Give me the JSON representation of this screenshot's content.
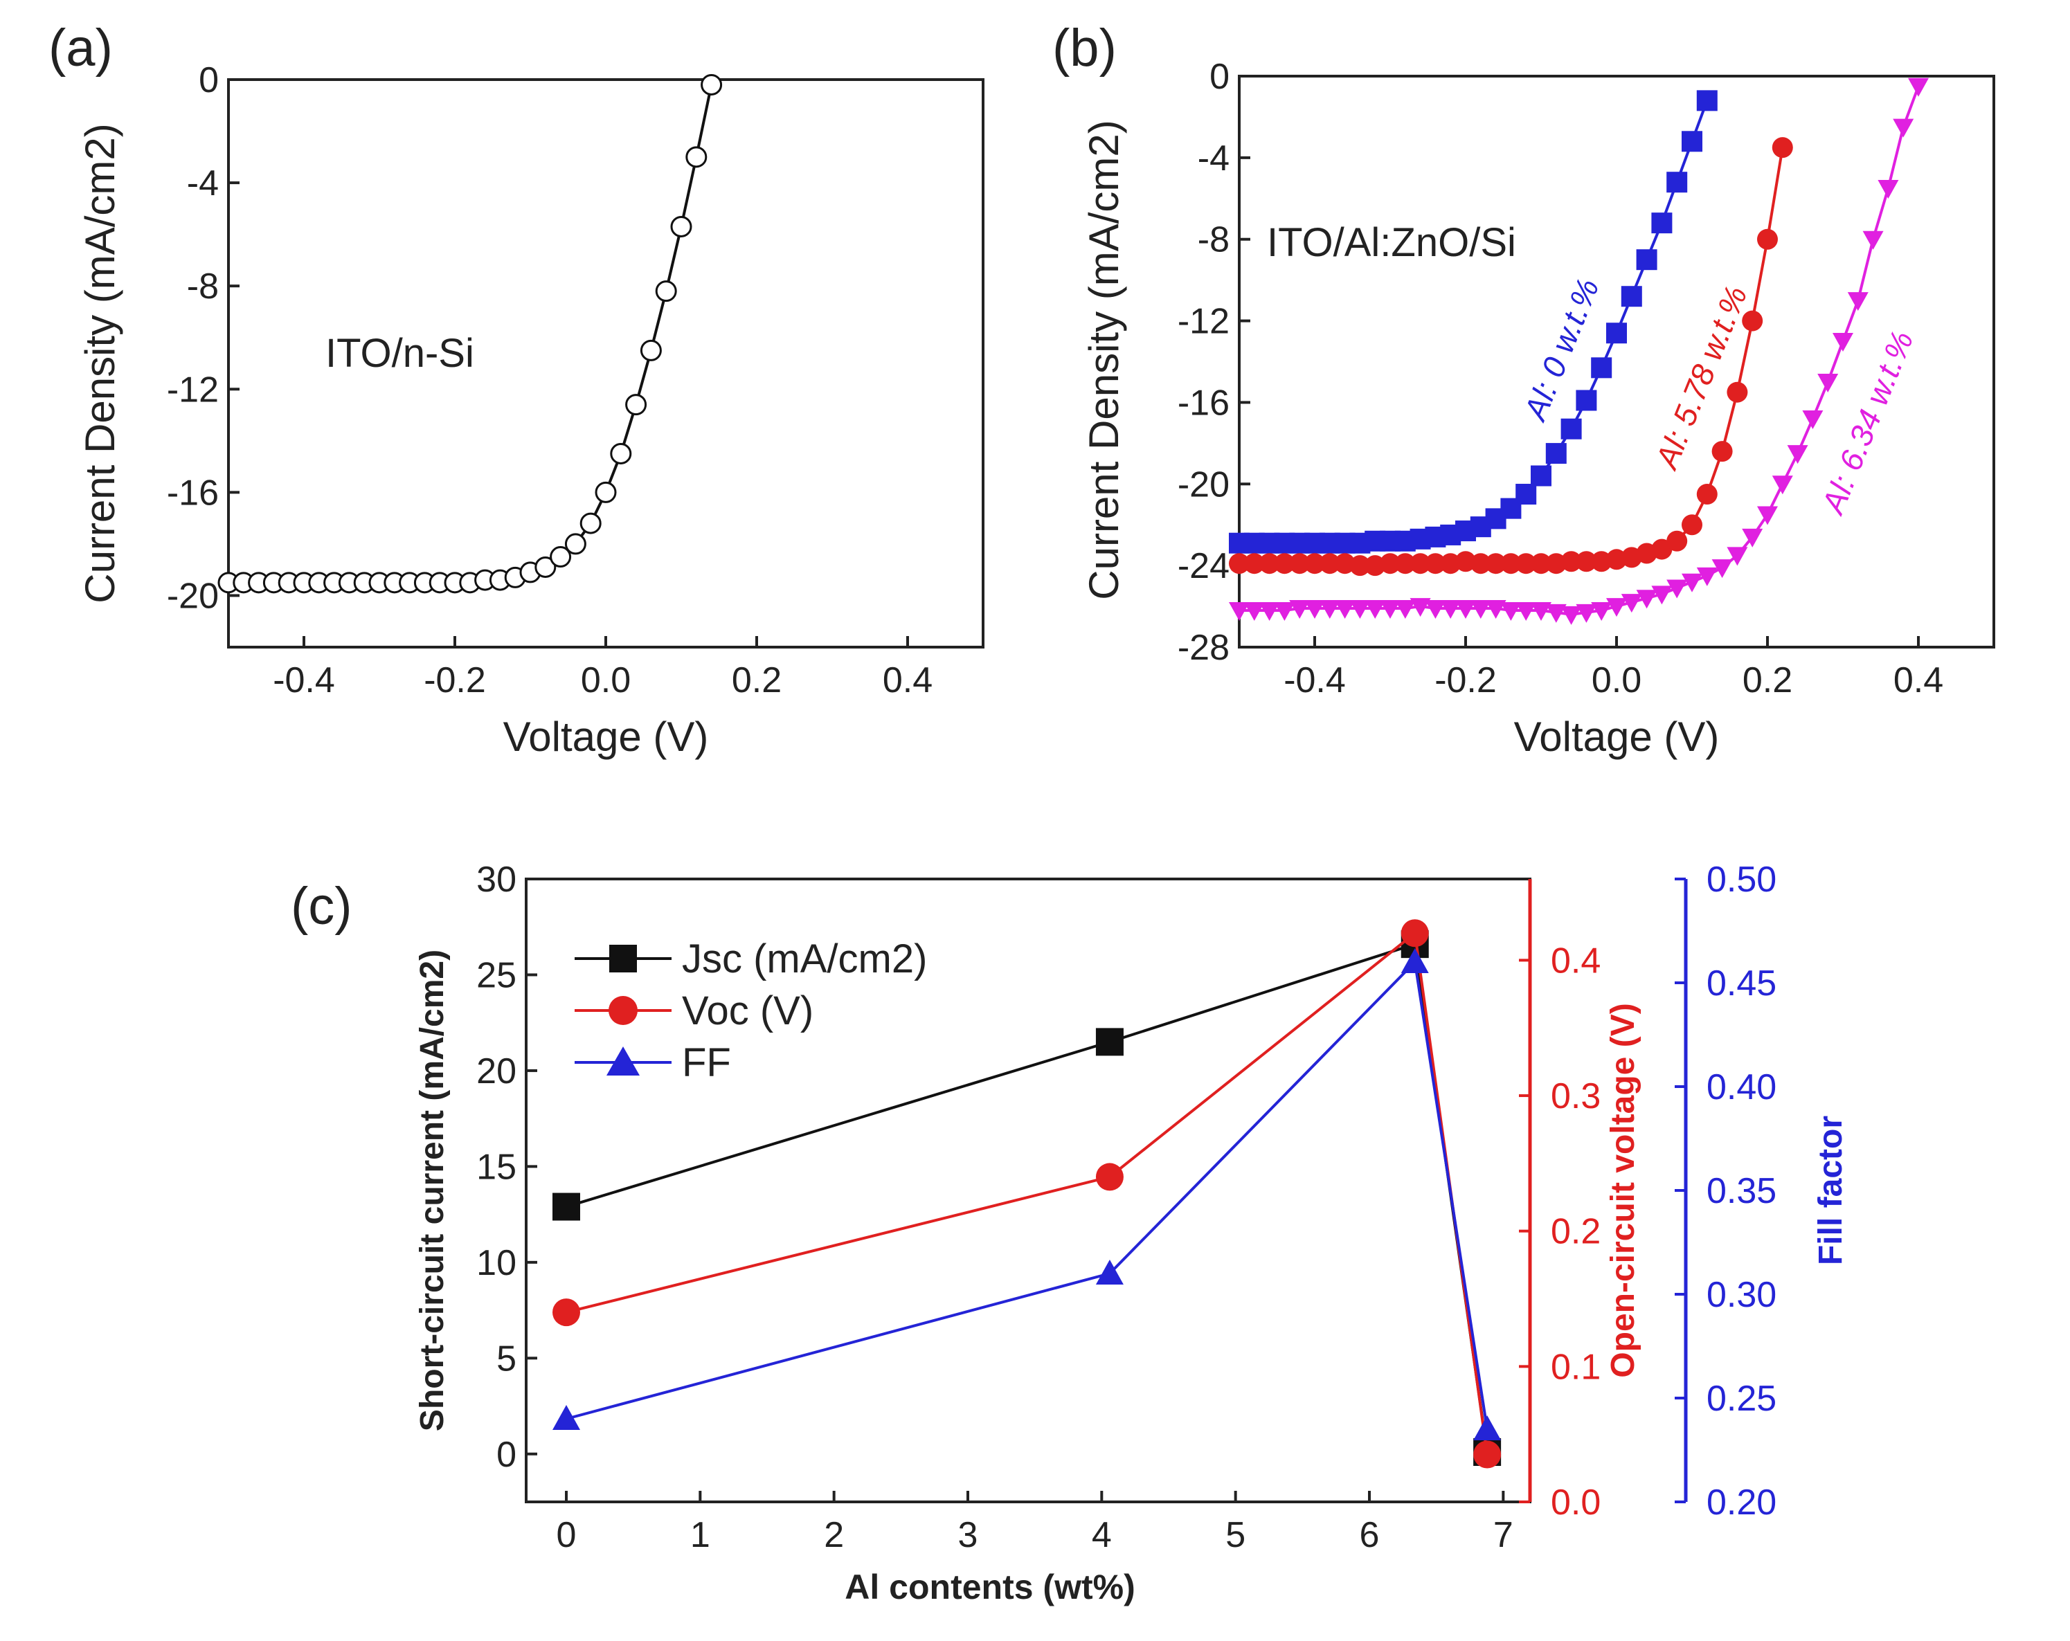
{
  "chart_data": [
    {
      "id": "a",
      "type": "line",
      "panel_label": "(a)",
      "annotation": "ITO/n-Si",
      "xlabel": "Voltage (V)",
      "ylabel": "Current Density (mA/cm2)",
      "xlim": [
        -0.5,
        0.5
      ],
      "ylim": [
        -22,
        0
      ],
      "xticks": [
        "-0.4",
        "-0.2",
        "0.0",
        "0.2",
        "0.4"
      ],
      "yticks": [
        "0",
        "-4",
        "-8",
        "-12",
        "-16",
        "-20"
      ],
      "series": [
        {
          "name": "ITO/n-Si",
          "color": "#111111",
          "marker": "open-circle",
          "x": [
            -0.5,
            -0.48,
            -0.46,
            -0.44,
            -0.42,
            -0.4,
            -0.38,
            -0.36,
            -0.34,
            -0.32,
            -0.3,
            -0.28,
            -0.26,
            -0.24,
            -0.22,
            -0.2,
            -0.18,
            -0.16,
            -0.14,
            -0.12,
            -0.1,
            -0.08,
            -0.06,
            -0.04,
            -0.02,
            0.0,
            0.02,
            0.04,
            0.06,
            0.08,
            0.1,
            0.12,
            0.14
          ],
          "y": [
            -19.5,
            -19.5,
            -19.5,
            -19.5,
            -19.5,
            -19.5,
            -19.5,
            -19.5,
            -19.5,
            -19.5,
            -19.5,
            -19.5,
            -19.5,
            -19.5,
            -19.5,
            -19.5,
            -19.5,
            -19.4,
            -19.4,
            -19.3,
            -19.1,
            -18.9,
            -18.5,
            -18.0,
            -17.2,
            -16.0,
            -14.5,
            -12.6,
            -10.5,
            -8.2,
            -5.7,
            -3.0,
            -0.2
          ]
        }
      ]
    },
    {
      "id": "b",
      "type": "line",
      "panel_label": "(b)",
      "annotation": "ITO/Al:ZnO/Si",
      "xlabel": "Voltage (V)",
      "ylabel": "Current Density (mA/cm2)",
      "xlim": [
        -0.5,
        0.5
      ],
      "ylim": [
        -28,
        0
      ],
      "xticks": [
        "-0.4",
        "-0.2",
        "0.0",
        "0.2",
        "0.4"
      ],
      "yticks": [
        "0",
        "-4",
        "-8",
        "-12",
        "-16",
        "-20",
        "-24",
        "-28"
      ],
      "series": [
        {
          "name": "Al: 0 w.t.%",
          "color": "#2424d6",
          "marker": "square",
          "x": [
            -0.5,
            -0.48,
            -0.46,
            -0.44,
            -0.42,
            -0.4,
            -0.38,
            -0.36,
            -0.34,
            -0.32,
            -0.3,
            -0.28,
            -0.26,
            -0.24,
            -0.22,
            -0.2,
            -0.18,
            -0.16,
            -0.14,
            -0.12,
            -0.1,
            -0.08,
            -0.06,
            -0.04,
            -0.02,
            0.0,
            0.02,
            0.04,
            0.06,
            0.08,
            0.1,
            0.12
          ],
          "y": [
            -22.9,
            -22.9,
            -22.9,
            -22.9,
            -22.9,
            -22.9,
            -22.9,
            -22.9,
            -22.9,
            -22.8,
            -22.8,
            -22.8,
            -22.7,
            -22.6,
            -22.5,
            -22.3,
            -22.1,
            -21.7,
            -21.2,
            -20.5,
            -19.6,
            -18.5,
            -17.3,
            -15.9,
            -14.3,
            -12.6,
            -10.8,
            -9.0,
            -7.2,
            -5.2,
            -3.2,
            -1.2
          ]
        },
        {
          "name": "Al: 5.78 w.t.%",
          "color": "#e02020",
          "marker": "circle",
          "x": [
            -0.5,
            -0.48,
            -0.46,
            -0.44,
            -0.42,
            -0.4,
            -0.38,
            -0.36,
            -0.34,
            -0.32,
            -0.3,
            -0.28,
            -0.26,
            -0.24,
            -0.22,
            -0.2,
            -0.18,
            -0.16,
            -0.14,
            -0.12,
            -0.1,
            -0.08,
            -0.06,
            -0.04,
            -0.02,
            0.0,
            0.02,
            0.04,
            0.06,
            0.08,
            0.1,
            0.12,
            0.14,
            0.16,
            0.18,
            0.2,
            0.22
          ],
          "y": [
            -23.9,
            -23.9,
            -23.9,
            -23.9,
            -23.9,
            -23.9,
            -23.9,
            -23.9,
            -24.0,
            -24.0,
            -23.9,
            -23.9,
            -23.9,
            -23.9,
            -23.9,
            -23.8,
            -23.9,
            -23.9,
            -23.9,
            -23.9,
            -23.9,
            -23.9,
            -23.8,
            -23.8,
            -23.8,
            -23.7,
            -23.6,
            -23.4,
            -23.2,
            -22.8,
            -22.0,
            -20.5,
            -18.4,
            -15.5,
            -12.0,
            -8.0,
            -3.5
          ]
        },
        {
          "name": "Al: 6.34 w.t.%",
          "color": "#e020e0",
          "marker": "triangle-down",
          "x": [
            -0.5,
            -0.48,
            -0.46,
            -0.44,
            -0.42,
            -0.4,
            -0.38,
            -0.36,
            -0.34,
            -0.32,
            -0.3,
            -0.28,
            -0.26,
            -0.24,
            -0.22,
            -0.2,
            -0.18,
            -0.16,
            -0.14,
            -0.12,
            -0.1,
            -0.08,
            -0.06,
            -0.04,
            -0.02,
            0.0,
            0.02,
            0.04,
            0.06,
            0.08,
            0.1,
            0.12,
            0.14,
            0.16,
            0.18,
            0.2,
            0.22,
            0.24,
            0.26,
            0.28,
            0.3,
            0.32,
            0.34,
            0.36,
            0.38,
            0.4
          ],
          "y": [
            -26.2,
            -26.2,
            -26.2,
            -26.2,
            -26.1,
            -26.1,
            -26.1,
            -26.1,
            -26.1,
            -26.1,
            -26.1,
            -26.1,
            -26.0,
            -26.1,
            -26.1,
            -26.1,
            -26.1,
            -26.1,
            -26.2,
            -26.2,
            -26.2,
            -26.3,
            -26.4,
            -26.3,
            -26.2,
            -26.0,
            -25.8,
            -25.6,
            -25.4,
            -25.1,
            -24.8,
            -24.5,
            -24.1,
            -23.5,
            -22.6,
            -21.5,
            -20.0,
            -18.5,
            -16.8,
            -15.0,
            -13.0,
            -11.0,
            -8.0,
            -5.5,
            -2.5,
            -0.5
          ]
        }
      ]
    },
    {
      "id": "c",
      "type": "line",
      "panel_label": "(c)",
      "xlabel": "Al contents (wt%)",
      "ylabel": "Short-circuit current (mA/cm2)",
      "ylabel_right1": "Open-circuit voltage (V)",
      "ylabel_right2": "Fill factor",
      "xlim": [
        -0.3,
        7.2
      ],
      "ylim_left": [
        -2.5,
        30
      ],
      "ylim_right1": [
        0.0,
        0.46
      ],
      "ylim_right2": [
        0.2,
        0.5
      ],
      "xticks": [
        "0",
        "1",
        "2",
        "3",
        "4",
        "5",
        "6",
        "7"
      ],
      "yticks_left": [
        "0",
        "5",
        "10",
        "15",
        "20",
        "25",
        "30"
      ],
      "yticks_right1": [
        "0.0",
        "0.1",
        "0.2",
        "0.3",
        "0.4"
      ],
      "yticks_right2": [
        "0.20",
        "0.25",
        "0.30",
        "0.35",
        "0.40",
        "0.45",
        "0.50"
      ],
      "series": [
        {
          "name": "Jsc (mA/cm2)",
          "axis": "left",
          "color": "#111111",
          "marker": "square",
          "x": [
            0,
            4.06,
            6.34,
            6.88
          ],
          "y": [
            12.9,
            21.5,
            26.6,
            0.1
          ]
        },
        {
          "name": "Voc (V)",
          "axis": "right1",
          "color": "#e02020",
          "marker": "circle",
          "x": [
            0,
            4.06,
            6.34,
            6.88
          ],
          "y": [
            0.14,
            0.24,
            0.42,
            0.035
          ]
        },
        {
          "name": "FF",
          "axis": "right2",
          "color": "#2424d6",
          "marker": "triangle-up",
          "x": [
            0,
            4.06,
            6.34,
            6.88
          ],
          "y": [
            0.24,
            0.31,
            0.46,
            0.235
          ]
        }
      ]
    }
  ]
}
